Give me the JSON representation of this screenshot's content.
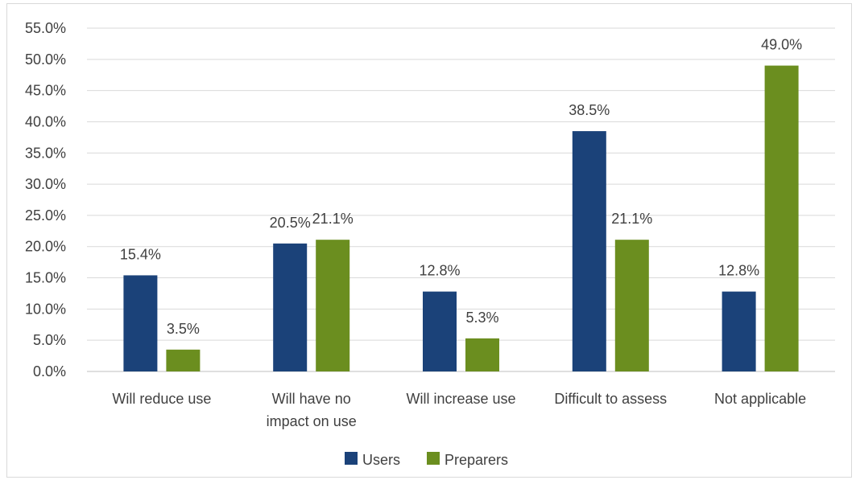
{
  "chart_data": {
    "type": "bar",
    "categories": [
      [
        "Will reduce use"
      ],
      [
        "Will have no",
        "impact on use"
      ],
      [
        "Will increase use"
      ],
      [
        "Difficult to assess"
      ],
      [
        "Not applicable"
      ]
    ],
    "series": [
      {
        "name": "Users",
        "color": "#1b4279",
        "values": [
          15.4,
          20.5,
          12.8,
          38.5,
          12.8
        ],
        "labels": [
          "15.4%",
          "20.5%",
          "12.8%",
          "38.5%",
          "12.8%"
        ]
      },
      {
        "name": "Preparers",
        "color": "#6b8e1f",
        "values": [
          3.5,
          21.1,
          5.3,
          21.1,
          49.0
        ],
        "labels": [
          "3.5%",
          "21.1%",
          "5.3%",
          "21.1%",
          "49.0%"
        ]
      }
    ],
    "y_ticks": [
      "0.0%",
      "5.0%",
      "10.0%",
      "15.0%",
      "20.0%",
      "25.0%",
      "30.0%",
      "35.0%",
      "40.0%",
      "45.0%",
      "50.0%",
      "55.0%"
    ],
    "ylim": [
      0,
      55
    ],
    "grid": true,
    "legend_position": "bottom"
  }
}
